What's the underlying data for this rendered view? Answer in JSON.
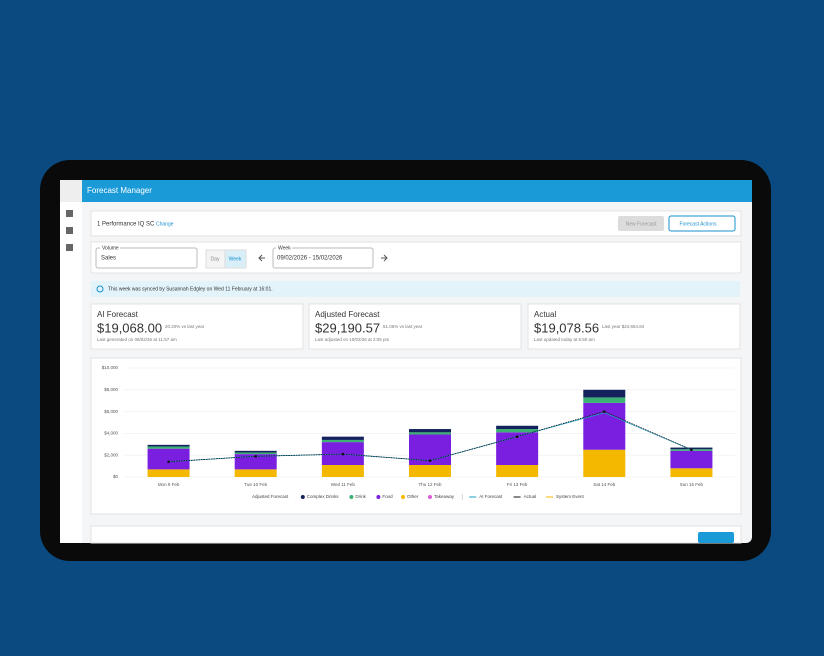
{
  "header": {
    "title": "Forecast Manager"
  },
  "store": {
    "name": "1 Performance IQ SC",
    "link": "Change"
  },
  "buttons": {
    "new_forecast": "New Forecast",
    "forecast_actions": "Forecast Actions"
  },
  "filters": {
    "volume_label": "Volume",
    "volume_value": "Sales",
    "toggle": [
      "Day",
      "Week"
    ],
    "week_label": "Week",
    "week_value": "09/02/2026 - 15/02/2026"
  },
  "notice": "This week was synced by Susannah Edgley on Wed 11 February at 16:01.",
  "cards": [
    {
      "title": "AI Forecast",
      "value": "$19,068.00",
      "change": "20.20% vs last year",
      "note": "Last generated on 06/02/26 at 11:57 am"
    },
    {
      "title": "Adjusted Forecast",
      "value": "$29,190.57",
      "change": "51.05% vs last year",
      "note": "Last adjusted on 10/02/26 at 2:05 pm"
    },
    {
      "title": "Actual",
      "value": "$19,078.56",
      "change": "Last year $24,654.84",
      "note": "Last updated today at 6:50 am"
    }
  ],
  "chart_data": {
    "type": "bar",
    "stacked": true,
    "legend_title": "Adjusted Forecast",
    "categories": [
      "Mon 9 Feb",
      "Tue 10 Feb",
      "Wed 11 Feb",
      "Thu 12 Feb",
      "Fri 13 Feb",
      "Sat 14 Feb",
      "Sun 15 Feb"
    ],
    "series": [
      {
        "name": "Complex Drinks",
        "color": "#14235e",
        "type": "bar",
        "values": [
          150,
          150,
          300,
          300,
          300,
          700,
          150
        ]
      },
      {
        "name": "Drink",
        "color": "#3bb273",
        "type": "bar",
        "values": [
          200,
          150,
          200,
          200,
          300,
          500,
          150
        ]
      },
      {
        "name": "Food",
        "color": "#7a1fe0",
        "type": "bar",
        "values": [
          1900,
          1400,
          2100,
          2800,
          3000,
          4300,
          1600
        ]
      },
      {
        "name": "Other",
        "color": "#f5b800",
        "type": "bar",
        "values": [
          700,
          700,
          1100,
          1100,
          1100,
          2500,
          800
        ]
      },
      {
        "name": "Takeaway",
        "color": "#e05bd8",
        "type": "bar",
        "values": [
          0,
          0,
          0,
          0,
          0,
          0,
          0
        ]
      },
      {
        "name": "AI Forecast",
        "color": "#1aa0c8",
        "type": "line",
        "values": [
          1400,
          1900,
          2100,
          1500,
          3700,
          5900,
          2500
        ]
      },
      {
        "name": "Actual",
        "color": "#111111",
        "type": "line",
        "values": [
          1400,
          1900,
          2100,
          1500,
          3700,
          6000,
          2500
        ]
      },
      {
        "name": "System Event",
        "color": "#f5b800",
        "type": "line",
        "values": [
          null,
          null,
          null,
          null,
          null,
          null,
          null
        ]
      }
    ],
    "ylim": [
      0,
      10000
    ],
    "yticks": [
      {
        "value": 0,
        "label": "$0"
      },
      {
        "value": 2000,
        "label": "$2,000"
      },
      {
        "value": 4000,
        "label": "$4,000"
      },
      {
        "value": 6000,
        "label": "$6,000"
      },
      {
        "value": 8000,
        "label": "$8,000"
      },
      {
        "value": 10000,
        "label": "$10,000"
      }
    ],
    "grid": true
  }
}
